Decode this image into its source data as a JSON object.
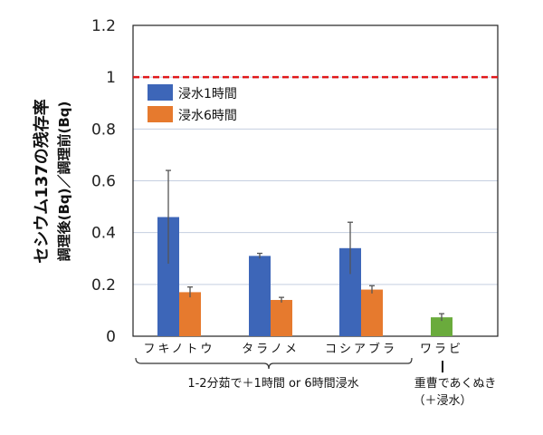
{
  "chart_data": {
    "type": "bar",
    "ylabel": "セシウム137の残存率",
    "ylabel2": "調理後(Bq)／調理前(Bq)",
    "ylim": [
      0,
      1.2
    ],
    "yticks": [
      "0",
      "0.2",
      "0.4",
      "0.6",
      "0.8",
      "1",
      "1.2"
    ],
    "grid": true,
    "legend_position": "top-left",
    "reference_line": {
      "y": 1,
      "color": "#e0191b",
      "style": "dashed"
    },
    "categories": [
      "フキノトウ",
      "タラノメ",
      "コシアブラ",
      "ワラビ"
    ],
    "series": [
      {
        "name": "浸水1時間",
        "color": "#3d66b8",
        "values": [
          0.46,
          0.31,
          0.34,
          null
        ],
        "error_upper": [
          0.64,
          0.32,
          0.44,
          null
        ]
      },
      {
        "name": "浸水6時間",
        "color": "#e67a2e",
        "values": [
          0.17,
          0.14,
          0.18,
          null
        ],
        "error_upper": [
          0.19,
          0.15,
          0.195,
          null
        ]
      },
      {
        "name": "",
        "color": "#6aab3c",
        "values": [
          null,
          null,
          null,
          0.073
        ],
        "error_upper": [
          null,
          null,
          null,
          0.087
        ]
      }
    ],
    "annotations": {
      "group_note": "1-2分茹で＋1時間 or 6時間浸水",
      "warabi_note_1": "重曹であくぬき",
      "warabi_note_2": "（＋浸水）"
    }
  }
}
